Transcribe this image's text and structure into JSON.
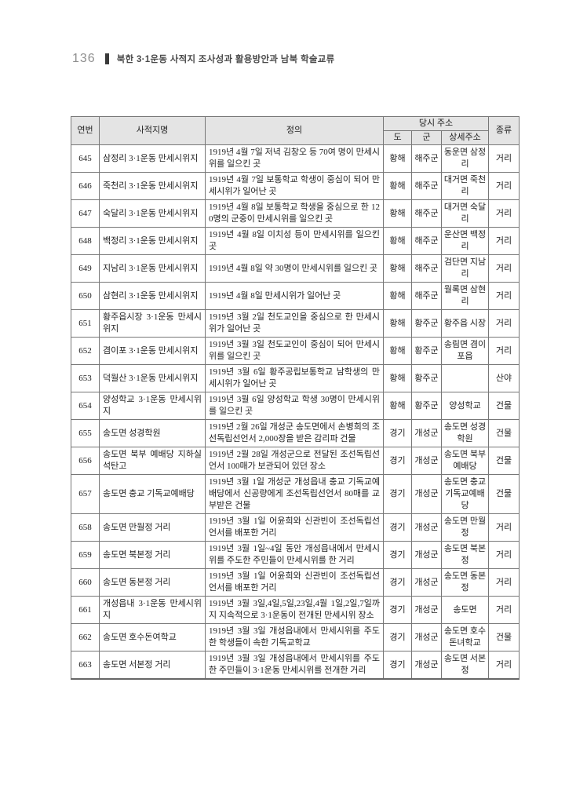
{
  "running_head": {
    "page_number": "136",
    "title": "북한 3·1운동 사적지 조사성과 활용방안과 남북 학술교류"
  },
  "table": {
    "headers": {
      "id": "연번",
      "site_name": "사적지명",
      "definition": "정의",
      "address_group": "당시 주소",
      "province": "도",
      "county": "군",
      "detail_address": "상세주소",
      "type": "종류"
    },
    "header_bg_color": "#e4e4e4",
    "rows": [
      {
        "id": "645",
        "name": "삼정리 3·1운동 만세시위지",
        "definition": "1919년 4월 7일 저녁 김창오 등 70여 명이 만세시위를 일으킨 곳",
        "province": "황해",
        "county": "해주군",
        "detail": "동운면 삼정리",
        "type": "거리"
      },
      {
        "id": "646",
        "name": "죽천리 3·1운동 만세시위지",
        "definition": "1919년 4월 7일 보통학교 학생이 중심이 되어 만세시위가 일어난 곳",
        "province": "황해",
        "county": "해주군",
        "detail": "대거면 죽천리",
        "type": "거리"
      },
      {
        "id": "647",
        "name": "숙달리 3·1운동 만세시위지",
        "definition": "1919년 4월 8일 보통학교 학생을 중심으로 한 120명의 군중이 만세시위를 일으킨 곳",
        "province": "황해",
        "county": "해주군",
        "detail": "대거면 숙달리",
        "type": "거리"
      },
      {
        "id": "648",
        "name": "백정리 3·1운동 만세시위지",
        "definition": "1919년 4월 8일 이치성 등이 만세시위를 일으킨 곳",
        "province": "황해",
        "county": "해주군",
        "detail": "운산면 백정리",
        "type": "거리"
      },
      {
        "id": "649",
        "name": "지남리 3·1운동 만세시위지",
        "definition": "1919년 4월 8일 약 30명이 만세시위를 일으킨 곳",
        "province": "황해",
        "county": "해주군",
        "detail": "검단면 지남리",
        "type": "거리"
      },
      {
        "id": "650",
        "name": "삼현리 3·1운동 만세시위지",
        "definition": "1919년 4월 8일 만세시위가 일어난 곳",
        "province": "황해",
        "county": "해주군",
        "detail": "월록면 삼현리",
        "type": "거리"
      },
      {
        "id": "651",
        "name": "황주읍시장 3·1운동 만세시위지",
        "definition": "1919년 3월 2일 천도교인을 중심으로 한 만세시위가 일어난 곳",
        "province": "황해",
        "county": "황주군",
        "detail": "황주읍 시장",
        "type": "거리"
      },
      {
        "id": "652",
        "name": "겸이포 3·1운동 만세시위지",
        "definition": "1919년 3월 3일 천도교인이 중심이 되어 만세시위를 일으킨 곳",
        "province": "황해",
        "county": "황주군",
        "detail": "송림면 겸이포읍",
        "type": "거리"
      },
      {
        "id": "653",
        "name": "덕월산 3·1운동 만세시위지",
        "definition": "1919년 3월 6일 황주공립보통학교 남학생의 만세시위가 일어난 곳",
        "province": "황해",
        "county": "황주군",
        "detail": "",
        "type": "산야"
      },
      {
        "id": "654",
        "name": "양성학교 3·1운동 만세시위지",
        "definition": "1919년 3월 6일 양성학교 학생 30명이 만세시위를 일으킨 곳",
        "province": "황해",
        "county": "황주군",
        "detail": "양성학교",
        "type": "건물"
      },
      {
        "id": "655",
        "name": "송도면 성경학원",
        "definition": "1919년 2월 26일 개성군 송도면에서 손병희의 조선독립선언서 2,000장을 받은 감리파 건물",
        "province": "경기",
        "county": "개성군",
        "detail": "송도면 성경학원",
        "type": "건물"
      },
      {
        "id": "656",
        "name": "송도면 북부 예배당 지하실 석탄고",
        "definition": "1919년 2월 28일 개성군으로 전달된 조선독립선언서 100매가 보관되어 있던 장소",
        "province": "경기",
        "county": "개성군",
        "detail": "송도면 북부 예배당",
        "type": "건물"
      },
      {
        "id": "657",
        "name": "송도면 충교 기독교예배당",
        "definition": "1919년 3월 1일 개성군 개성읍내 충교 기독교예배당에서 신공량에게 조선독립선언서 80매를 교부받은 건물",
        "province": "경기",
        "county": "개성군",
        "detail": "송도면 충교 기독교예배당",
        "type": "건물"
      },
      {
        "id": "658",
        "name": "송도면 만월정 거리",
        "definition": "1919년 3월 1일 어윤희와 신관빈이 조선독립선언서를 배포한 거리",
        "province": "경기",
        "county": "개성군",
        "detail": "송도면 만월정",
        "type": "거리"
      },
      {
        "id": "659",
        "name": "송도면 북본정 거리",
        "definition": "1919년 3월 1일~4일 동안 개성읍내에서 만세시위를 주도한 주민들이 만세시위를 한 거리",
        "province": "경기",
        "county": "개성군",
        "detail": "송도면 북본정",
        "type": "거리"
      },
      {
        "id": "660",
        "name": "송도면 동본정 거리",
        "definition": "1919년 3월 1일 어윤희와 신관빈이 조선독립선언서를 배포한 거리",
        "province": "경기",
        "county": "개성군",
        "detail": "송도면 동본정",
        "type": "거리"
      },
      {
        "id": "661",
        "name": "개성읍내 3·1운동 만세시위지",
        "definition": "1919년 3월 3일,4일,5일,23일,4월 1일,2일,7일까지 지속적으로 3·1운동이 전개된 만세시위 장소",
        "province": "경기",
        "county": "개성군",
        "detail": "송도면",
        "type": "거리"
      },
      {
        "id": "662",
        "name": "송도면 호수돈여학교",
        "definition": "1919년 3월 3일 개성읍내에서 만세시위를 주도한 학생들이 속한 기독교학교",
        "province": "경기",
        "county": "개성군",
        "detail": "송도면 호수돈녀학교",
        "type": "건물"
      },
      {
        "id": "663",
        "name": "송도면 서본정 거리",
        "definition": "1919년 3월 3일 개성읍내에서 만세시위를 주도한 주민들이 3·1운동 만세시위를 전개한 거리",
        "province": "경기",
        "county": "개성군",
        "detail": "송도면 서본정",
        "type": "거리"
      }
    ]
  }
}
